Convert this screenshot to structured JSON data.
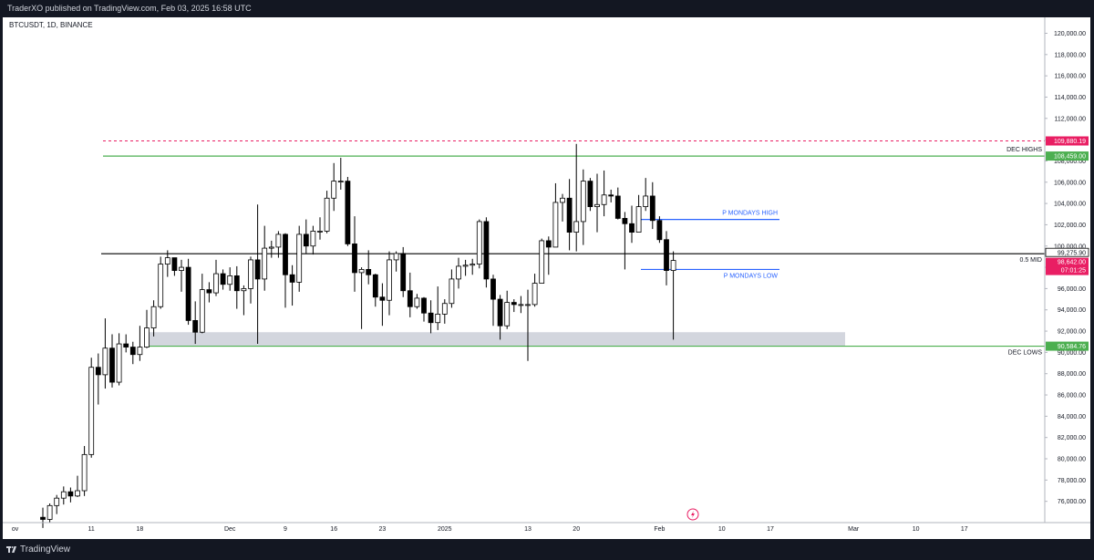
{
  "header": {
    "published": "TraderXO published on TradingView.com, Feb 03, 2025 16:58 UTC"
  },
  "symbol": {
    "label": "BTCUSDT, 1D, BINANCE"
  },
  "footer": {
    "brand": "TradingView"
  },
  "colors": {
    "green": "#4caf50",
    "blue": "#2962ff",
    "red": "#e91e63",
    "black": "#000000",
    "zone": "#d1d4dc"
  },
  "chart_data": {
    "type": "candlestick",
    "ylim": [
      74000,
      121500
    ],
    "y_ticks": [
      "76,000.00",
      "78,000.00",
      "80,000.00",
      "82,000.00",
      "84,000.00",
      "86,000.00",
      "88,000.00",
      "90,000.00",
      "92,000.00",
      "94,000.00",
      "96,000.00",
      "98,000.00",
      "100,000.00",
      "102,000.00",
      "104,000.00",
      "106,000.00",
      "108,000.00",
      "110,000.00",
      "112,000.00",
      "114,000.00",
      "116,000.00",
      "118,000.00",
      "120,000.00"
    ],
    "x_ticks": [
      {
        "label": "ov",
        "date": "2024-10-31"
      },
      {
        "label": "11",
        "date": "2024-11-11"
      },
      {
        "label": "18",
        "date": "2024-11-18"
      },
      {
        "label": "Dec",
        "date": "2024-12-01"
      },
      {
        "label": "9",
        "date": "2024-12-09"
      },
      {
        "label": "16",
        "date": "2024-12-16"
      },
      {
        "label": "23",
        "date": "2024-12-23"
      },
      {
        "label": "2025",
        "date": "2025-01-01"
      },
      {
        "label": "13",
        "date": "2025-01-13"
      },
      {
        "label": "20",
        "date": "2025-01-20"
      },
      {
        "label": "Feb",
        "date": "2025-02-01"
      },
      {
        "label": "10",
        "date": "2025-02-10"
      },
      {
        "label": "17",
        "date": "2025-02-17"
      },
      {
        "label": "Mar",
        "date": "2025-03-01"
      },
      {
        "label": "10",
        "date": "2025-03-10"
      },
      {
        "label": "17",
        "date": "2025-03-17"
      }
    ],
    "ohlc": [
      [
        "2024-11-04",
        74500,
        75400,
        73500,
        74300
      ],
      [
        "2024-11-05",
        74300,
        75800,
        74000,
        75600
      ],
      [
        "2024-11-06",
        75600,
        76600,
        74800,
        76300
      ],
      [
        "2024-11-07",
        76300,
        77400,
        75700,
        76900
      ],
      [
        "2024-11-08",
        76900,
        77300,
        75900,
        76500
      ],
      [
        "2024-11-09",
        76500,
        78400,
        76400,
        77000
      ],
      [
        "2024-11-10",
        77000,
        81200,
        76500,
        80400
      ],
      [
        "2024-11-11",
        80400,
        89500,
        80100,
        88600
      ],
      [
        "2024-11-12",
        88600,
        89900,
        85100,
        87900
      ],
      [
        "2024-11-13",
        87900,
        93200,
        86600,
        90400
      ],
      [
        "2024-11-14",
        90400,
        91700,
        86700,
        87200
      ],
      [
        "2024-11-15",
        87200,
        91800,
        86900,
        90800
      ],
      [
        "2024-11-16",
        90800,
        91700,
        90000,
        90500
      ],
      [
        "2024-11-17",
        90500,
        91000,
        88900,
        89800
      ],
      [
        "2024-11-18",
        89800,
        92500,
        89200,
        90500
      ],
      [
        "2024-11-19",
        90500,
        94000,
        90400,
        92300
      ],
      [
        "2024-11-20",
        92300,
        94900,
        91500,
        94300
      ],
      [
        "2024-11-21",
        94300,
        99000,
        94100,
        98300
      ],
      [
        "2024-11-22",
        98300,
        99600,
        97100,
        98900
      ],
      [
        "2024-11-23",
        98900,
        98800,
        97200,
        97700
      ],
      [
        "2024-11-24",
        97700,
        98700,
        95700,
        98000
      ],
      [
        "2024-11-25",
        98000,
        98800,
        92600,
        93000
      ],
      [
        "2024-11-26",
        93000,
        94800,
        90800,
        91900
      ],
      [
        "2024-11-27",
        91900,
        97400,
        91800,
        95900
      ],
      [
        "2024-11-28",
        95900,
        96600,
        94700,
        95600
      ],
      [
        "2024-11-29",
        95600,
        98700,
        95300,
        97400
      ],
      [
        "2024-11-30",
        97400,
        97800,
        95900,
        96400
      ],
      [
        "2024-12-01",
        96400,
        98000,
        95800,
        97200
      ],
      [
        "2024-12-02",
        97200,
        98100,
        94100,
        95800
      ],
      [
        "2024-12-03",
        95800,
        96300,
        93500,
        96000
      ],
      [
        "2024-12-04",
        96000,
        99000,
        94600,
        98700
      ],
      [
        "2024-12-05",
        98700,
        103900,
        90800,
        96900
      ],
      [
        "2024-12-06",
        96900,
        101900,
        95800,
        99800
      ],
      [
        "2024-12-07",
        99800,
        100500,
        98900,
        99900
      ],
      [
        "2024-12-08",
        99900,
        101400,
        98900,
        101100
      ],
      [
        "2024-12-09",
        101100,
        101200,
        94200,
        97300
      ],
      [
        "2024-12-10",
        97300,
        98200,
        94400,
        96600
      ],
      [
        "2024-12-11",
        96600,
        101900,
        95700,
        101100
      ],
      [
        "2024-12-12",
        101100,
        102500,
        99300,
        100000
      ],
      [
        "2024-12-13",
        100000,
        101900,
        99200,
        101400
      ],
      [
        "2024-12-14",
        101400,
        102700,
        100600,
        101400
      ],
      [
        "2024-12-15",
        101400,
        105200,
        101200,
        104500
      ],
      [
        "2024-12-16",
        104500,
        107800,
        103300,
        106100
      ],
      [
        "2024-12-17",
        106100,
        108300,
        105300,
        106100
      ],
      [
        "2024-12-18",
        106100,
        106500,
        100000,
        100200
      ],
      [
        "2024-12-19",
        100200,
        102800,
        95700,
        97500
      ],
      [
        "2024-12-20",
        97500,
        98000,
        92200,
        97800
      ],
      [
        "2024-12-21",
        97800,
        99600,
        96400,
        97300
      ],
      [
        "2024-12-22",
        97300,
        97400,
        94300,
        95200
      ],
      [
        "2024-12-23",
        95200,
        96500,
        92500,
        94900
      ],
      [
        "2024-12-24",
        94900,
        99500,
        93500,
        98700
      ],
      [
        "2024-12-25",
        98700,
        99500,
        97600,
        99300
      ],
      [
        "2024-12-26",
        99300,
        99900,
        95200,
        95800
      ],
      [
        "2024-12-27",
        95800,
        97500,
        93300,
        94300
      ],
      [
        "2024-12-28",
        94300,
        95500,
        94100,
        95100
      ],
      [
        "2024-12-29",
        95100,
        95200,
        92900,
        93700
      ],
      [
        "2024-12-30",
        93700,
        94900,
        91800,
        92800
      ],
      [
        "2024-12-31",
        92800,
        96200,
        92100,
        93600
      ],
      [
        "2025-01-01",
        93600,
        95000,
        92700,
        94600
      ],
      [
        "2025-01-02",
        94600,
        97800,
        94200,
        96900
      ],
      [
        "2025-01-03",
        96900,
        98900,
        96000,
        98100
      ],
      [
        "2025-01-04",
        98100,
        98700,
        97200,
        98200
      ],
      [
        "2025-01-05",
        98200,
        98800,
        97300,
        98300
      ],
      [
        "2025-01-06",
        98300,
        102500,
        97900,
        102300
      ],
      [
        "2025-01-07",
        102300,
        102700,
        96100,
        96900
      ],
      [
        "2025-01-08",
        96900,
        97300,
        92500,
        95000
      ],
      [
        "2025-01-09",
        95000,
        95400,
        91200,
        92500
      ],
      [
        "2025-01-10",
        92500,
        95800,
        92200,
        94700
      ],
      [
        "2025-01-11",
        94700,
        95000,
        93800,
        94500
      ],
      [
        "2025-01-12",
        94500,
        95300,
        93700,
        94500
      ],
      [
        "2025-01-13",
        94500,
        95900,
        89200,
        94500
      ],
      [
        "2025-01-14",
        94500,
        97400,
        94300,
        96500
      ],
      [
        "2025-01-15",
        96500,
        100700,
        96500,
        100500
      ],
      [
        "2025-01-16",
        100500,
        100900,
        97300,
        99900
      ],
      [
        "2025-01-17",
        99900,
        105900,
        99900,
        104100
      ],
      [
        "2025-01-18",
        104100,
        104900,
        102300,
        104500
      ],
      [
        "2025-01-19",
        104500,
        106300,
        99600,
        101300
      ],
      [
        "2025-01-20",
        101300,
        109600,
        99500,
        102300
      ],
      [
        "2025-01-21",
        102300,
        107200,
        100100,
        106100
      ],
      [
        "2025-01-22",
        106100,
        106400,
        103300,
        103700
      ],
      [
        "2025-01-23",
        103700,
        106800,
        101300,
        103900
      ],
      [
        "2025-01-24",
        103900,
        107100,
        102800,
        104800
      ],
      [
        "2025-01-25",
        104800,
        105300,
        104100,
        104700
      ],
      [
        "2025-01-26",
        104700,
        105500,
        102500,
        102600
      ],
      [
        "2025-01-27",
        102600,
        103200,
        97800,
        102100
      ],
      [
        "2025-01-28",
        102100,
        103800,
        100300,
        101300
      ],
      [
        "2025-01-29",
        101300,
        104800,
        101300,
        103700
      ],
      [
        "2025-01-30",
        103700,
        106400,
        103300,
        104700
      ],
      [
        "2025-01-31",
        104700,
        106000,
        101600,
        102400
      ],
      [
        "2025-02-01",
        102400,
        102800,
        100300,
        100600
      ],
      [
        "2025-02-02",
        100600,
        101400,
        96300,
        97700
      ],
      [
        "2025-02-03",
        97700,
        99500,
        91200,
        98642
      ]
    ]
  },
  "levels": {
    "dec_highs": {
      "label": "DEC HIGHS",
      "value": 108459,
      "tag": "108,459.00"
    },
    "top_dashed": {
      "value": 109880.19,
      "tag": "109,880.19"
    },
    "mid": {
      "label": "0.5 MID",
      "value": 99275.9,
      "tag": "99,275.90"
    },
    "dec_lows": {
      "label": "DEC LOWS",
      "value": 90584.76,
      "tag": "90,584.76"
    },
    "p_mondays_high": {
      "label": "P MONDAYS HIGH",
      "value": 102500
    },
    "p_mondays_low": {
      "label": "P MONDAYS LOW",
      "value": 97800
    },
    "zone": {
      "low": 90584.76,
      "high": 91900
    },
    "current_price": {
      "value": 98642,
      "tag": "98,642.00",
      "countdown": "07:01:25"
    }
  }
}
